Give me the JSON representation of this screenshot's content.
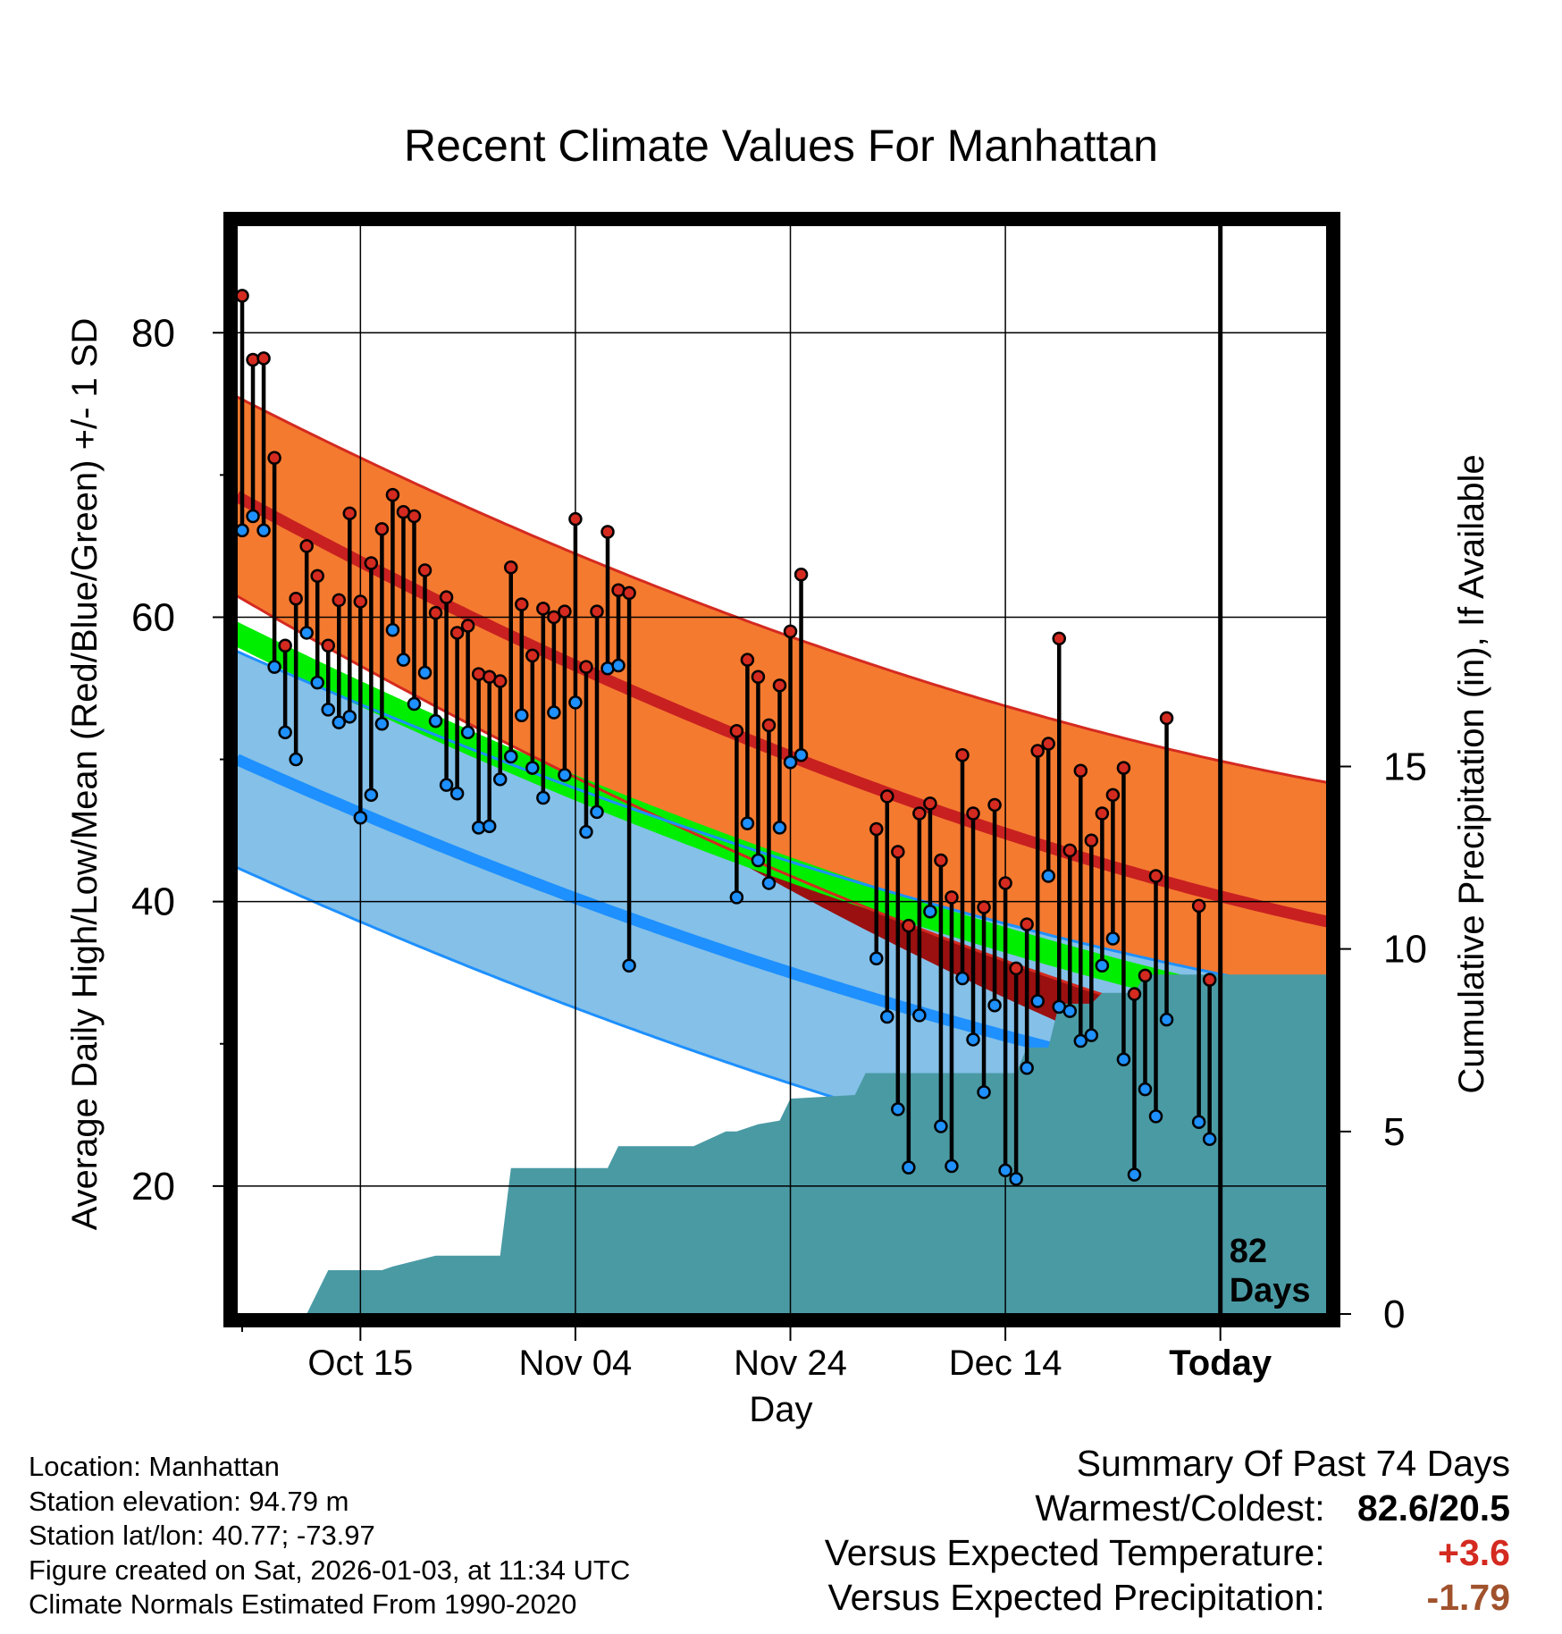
{
  "chart_data": {
    "type": "climate-range",
    "title": "Recent Climate Values For Manhattan",
    "xlabel": "Day",
    "ylabel": "Average Daily High/Low/Mean (Red/Blue/Green) +/- 1 SD",
    "y2label": "Cumulative Precipitation (in), If Available",
    "ylim": [
      11,
      88
    ],
    "y_ticks": [
      20,
      40,
      60,
      80
    ],
    "y_ticks_labels": [
      "20",
      "40",
      "60",
      "80"
    ],
    "y_minor_ticks": [
      30,
      50,
      70
    ],
    "y2lim": [
      0,
      30
    ],
    "y2_ticks": [
      0,
      5,
      10,
      15
    ],
    "y2_ticks_labels": [
      "0",
      "5",
      "10",
      "15"
    ],
    "x_range": [
      -5.5,
      96.5
    ],
    "x_ticks": [
      {
        "day": 6,
        "label": "Oct 15"
      },
      {
        "day": 26,
        "label": "Nov 04"
      },
      {
        "day": 46,
        "label": "Nov 24"
      },
      {
        "day": 66,
        "label": "Dec 14"
      },
      {
        "day": 86,
        "label": "Today"
      }
    ],
    "today_day": 86,
    "today_annotation": [
      "82",
      "Days"
    ],
    "normals": {
      "high_mean": {
        "start": 68.5,
        "end": 38.5
      },
      "high_sd": {
        "start": 7.0,
        "end": 9.8
      },
      "low_mean": {
        "start": 50.0,
        "end": 25.4
      },
      "low_sd": {
        "start": 7.6,
        "end": 8.0
      },
      "mean_mean": {
        "start": 58.8,
        "end": 31.6
      },
      "mean_band": 0.9,
      "color_high_band": "#f47a30",
      "color_high_edge": "#d42a20",
      "color_high_mean": "#c82020",
      "color_low_band": "#84c0e8",
      "color_low_edge": "#1e90ff",
      "color_low_mean": "#1e90ff",
      "color_mean": "#00ee00",
      "color_overlap": "#9a1010"
    },
    "precip_color": "#4a9aa4",
    "high_color": "#d42a20",
    "low_color": "#1e90ff",
    "observations": [
      {
        "day": -5,
        "high": 82.6,
        "low": 66.1
      },
      {
        "day": -4,
        "high": 78.1,
        "low": 67.1
      },
      {
        "day": -3,
        "high": 78.2,
        "low": 66.1
      },
      {
        "day": -2,
        "high": 71.2,
        "low": 56.5
      },
      {
        "day": -1,
        "high": 58.0,
        "low": 51.9
      },
      {
        "day": 0,
        "high": 61.3,
        "low": 50.0
      },
      {
        "day": 1,
        "high": 65.0,
        "low": 58.9
      },
      {
        "day": 2,
        "high": 62.9,
        "low": 55.4
      },
      {
        "day": 3,
        "high": 58.0,
        "low": 53.5
      },
      {
        "day": 4,
        "high": 61.2,
        "low": 52.6
      },
      {
        "day": 5,
        "high": 67.3,
        "low": 53.0
      },
      {
        "day": 6,
        "high": 61.1,
        "low": 45.9
      },
      {
        "day": 7,
        "high": 63.8,
        "low": 47.5
      },
      {
        "day": 8,
        "high": 66.2,
        "low": 52.5
      },
      {
        "day": 9,
        "high": 68.6,
        "low": 59.1
      },
      {
        "day": 10,
        "high": 67.4,
        "low": 57.0
      },
      {
        "day": 11,
        "high": 67.1,
        "low": 53.9
      },
      {
        "day": 12,
        "high": 63.3,
        "low": 56.1
      },
      {
        "day": 13,
        "high": 60.3,
        "low": 52.7
      },
      {
        "day": 14,
        "high": 61.4,
        "low": 48.2
      },
      {
        "day": 15,
        "high": 58.9,
        "low": 47.6
      },
      {
        "day": 16,
        "high": 59.4,
        "low": 51.9
      },
      {
        "day": 17,
        "high": 56.0,
        "low": 45.2
      },
      {
        "day": 18,
        "high": 55.8,
        "low": 45.3
      },
      {
        "day": 19,
        "high": 55.5,
        "low": 48.6
      },
      {
        "day": 20,
        "high": 63.5,
        "low": 50.2
      },
      {
        "day": 21,
        "high": 60.9,
        "low": 53.1
      },
      {
        "day": 22,
        "high": 57.3,
        "low": 49.4
      },
      {
        "day": 23,
        "high": 60.6,
        "low": 47.3
      },
      {
        "day": 24,
        "high": 60.0,
        "low": 53.3
      },
      {
        "day": 25,
        "high": 60.4,
        "low": 48.9
      },
      {
        "day": 26,
        "high": 66.9,
        "low": 54.0
      },
      {
        "day": 27,
        "high": 56.5,
        "low": 44.9
      },
      {
        "day": 28,
        "high": 60.4,
        "low": 46.3
      },
      {
        "day": 29,
        "high": 66.0,
        "low": 56.4
      },
      {
        "day": 30,
        "high": 61.9,
        "low": 56.6
      },
      {
        "day": 31,
        "high": 61.7,
        "low": 35.5
      },
      {
        "day": 41,
        "high": 52.0,
        "low": 40.3
      },
      {
        "day": 42,
        "high": 57.0,
        "low": 45.5
      },
      {
        "day": 43,
        "high": 55.8,
        "low": 42.9
      },
      {
        "day": 44,
        "high": 52.4,
        "low": 41.3
      },
      {
        "day": 45,
        "high": 55.2,
        "low": 45.2
      },
      {
        "day": 46,
        "high": 59.0,
        "low": 49.8
      },
      {
        "day": 47,
        "high": 63.0,
        "low": 50.3
      },
      {
        "day": 54,
        "high": 45.1,
        "low": 36.0
      },
      {
        "day": 55,
        "high": 47.4,
        "low": 31.9
      },
      {
        "day": 56,
        "high": 43.5,
        "low": 25.4
      },
      {
        "day": 57,
        "high": 38.3,
        "low": 21.3
      },
      {
        "day": 58,
        "high": 46.2,
        "low": 32.0
      },
      {
        "day": 59,
        "high": 46.9,
        "low": 39.3
      },
      {
        "day": 60,
        "high": 42.9,
        "low": 24.2
      },
      {
        "day": 61,
        "high": 40.3,
        "low": 21.4
      },
      {
        "day": 62,
        "high": 50.3,
        "low": 34.6
      },
      {
        "day": 63,
        "high": 46.2,
        "low": 30.3
      },
      {
        "day": 64,
        "high": 39.6,
        "low": 26.6
      },
      {
        "day": 65,
        "high": 46.8,
        "low": 32.7
      },
      {
        "day": 66,
        "high": 41.3,
        "low": 21.1
      },
      {
        "day": 67,
        "high": 35.3,
        "low": 20.5
      },
      {
        "day": 68,
        "high": 38.4,
        "low": 28.3
      },
      {
        "day": 69,
        "high": 50.6,
        "low": 33.0
      },
      {
        "day": 70,
        "high": 51.1,
        "low": 41.8
      },
      {
        "day": 71,
        "high": 58.5,
        "low": 32.6
      },
      {
        "day": 72,
        "high": 43.6,
        "low": 32.3
      },
      {
        "day": 73,
        "high": 49.2,
        "low": 30.2
      },
      {
        "day": 74,
        "high": 44.3,
        "low": 30.6
      },
      {
        "day": 75,
        "high": 46.2,
        "low": 35.5
      },
      {
        "day": 76,
        "high": 47.5,
        "low": 37.4
      },
      {
        "day": 77,
        "high": 49.4,
        "low": 28.9
      },
      {
        "day": 78,
        "high": 33.5,
        "low": 20.8
      },
      {
        "day": 79,
        "high": 34.8,
        "low": 26.8
      },
      {
        "day": 80,
        "high": 41.8,
        "low": 24.9
      },
      {
        "day": 81,
        "high": 52.9,
        "low": 31.7
      },
      {
        "day": 84,
        "high": 39.7,
        "low": 24.5
      },
      {
        "day": 85,
        "high": 34.5,
        "low": 23.3
      }
    ],
    "precip_cumulative": [
      {
        "day": 1,
        "value": 0
      },
      {
        "day": 3,
        "value": 1.2
      },
      {
        "day": 8,
        "value": 1.2
      },
      {
        "day": 9,
        "value": 1.3
      },
      {
        "day": 13,
        "value": 1.6
      },
      {
        "day": 19,
        "value": 1.6
      },
      {
        "day": 20,
        "value": 4.0
      },
      {
        "day": 29,
        "value": 4.0
      },
      {
        "day": 30,
        "value": 4.6
      },
      {
        "day": 37,
        "value": 4.6
      },
      {
        "day": 40,
        "value": 5.0
      },
      {
        "day": 41,
        "value": 5.0
      },
      {
        "day": 43,
        "value": 5.2
      },
      {
        "day": 45,
        "value": 5.3
      },
      {
        "day": 46,
        "value": 5.9
      },
      {
        "day": 52,
        "value": 6.0
      },
      {
        "day": 53,
        "value": 6.6
      },
      {
        "day": 56,
        "value": 6.6
      },
      {
        "day": 57,
        "value": 6.6
      },
      {
        "day": 67,
        "value": 6.6
      },
      {
        "day": 68,
        "value": 7.3
      },
      {
        "day": 70,
        "value": 7.3
      },
      {
        "day": 71,
        "value": 8.5
      },
      {
        "day": 74,
        "value": 8.5
      },
      {
        "day": 75,
        "value": 8.8
      },
      {
        "day": 78,
        "value": 8.8
      },
      {
        "day": 79,
        "value": 9.3
      },
      {
        "day": 96,
        "value": 9.3
      }
    ]
  },
  "info": {
    "location": "Location: Manhattan",
    "elevation": "Station elevation: 94.79 m",
    "latlon": "Station lat/lon: 40.77; -73.97",
    "created": "Figure created on Sat, 2026-01-03, at 11:34 UTC",
    "normals": "Climate Normals Estimated From 1990-2020"
  },
  "summary": {
    "title": "Summary Of Past 74 Days",
    "warm_cold_label": "Warmest/Coldest:",
    "warm_cold_value": "82.6/20.5",
    "temp_label": "Versus Expected Temperature:",
    "temp_value": "+3.6",
    "temp_color": "#d42a20",
    "precip_label": "Versus Expected Precipitation:",
    "precip_value": "-1.79",
    "precip_color": "#a0522d"
  }
}
